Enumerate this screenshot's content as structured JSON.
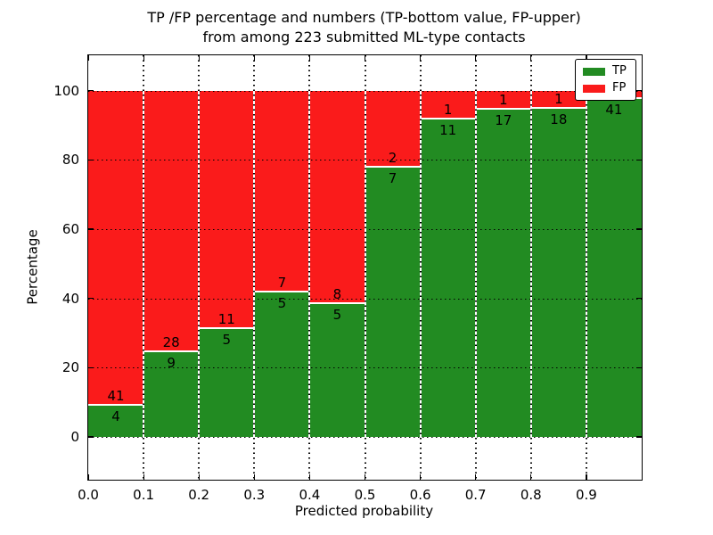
{
  "chart_data": {
    "type": "bar",
    "stacked": true,
    "normalized_to_percent": true,
    "title_lines": [
      "TP /FP percentage and numbers (TP-bottom value, FP-upper)",
      "from among 223 submitted ML-type contacts"
    ],
    "xlabel": "Predicted probability",
    "ylabel": "Percentage",
    "total_contacts": 223,
    "bin_starts": [
      0.0,
      0.1,
      0.2,
      0.3,
      0.4,
      0.5,
      0.6,
      0.7,
      0.8,
      0.9
    ],
    "bin_width": 0.1,
    "series": [
      {
        "name": "TP",
        "color": "#228b22",
        "counts": [
          4,
          9,
          5,
          5,
          5,
          7,
          11,
          17,
          18,
          41
        ]
      },
      {
        "name": "FP",
        "color": "#fa1b1b",
        "counts": [
          41,
          28,
          11,
          7,
          8,
          2,
          1,
          1,
          1,
          1
        ]
      }
    ],
    "tp_percent": [
      8.89,
      24.32,
      31.25,
      41.67,
      38.46,
      77.78,
      91.67,
      94.44,
      94.74,
      97.62
    ],
    "x_ticks": [
      0.0,
      0.1,
      0.2,
      0.3,
      0.4,
      0.5,
      0.6,
      0.7,
      0.8,
      0.9
    ],
    "x_tick_labels": [
      "0.0",
      "0.1",
      "0.2",
      "0.3",
      "0.4",
      "0.5",
      "0.6",
      "0.7",
      "0.8",
      "0.9"
    ],
    "y_ticks": [
      0,
      20,
      40,
      60,
      80,
      100
    ],
    "y_tick_labels": [
      "0",
      "20",
      "40",
      "60",
      "80",
      "100"
    ],
    "xlim": [
      0,
      1
    ],
    "ylim": [
      -12.4,
      110.2
    ],
    "grid": true,
    "grid_style": "dotted",
    "legend_position": "upper right",
    "legend_entries": [
      "TP",
      "FP"
    ],
    "colors": {
      "tp": "#228b22",
      "fp": "#fa1b1b",
      "bar_edge": "#ffffff",
      "axes": "#000000",
      "background": "#ffffff"
    }
  }
}
